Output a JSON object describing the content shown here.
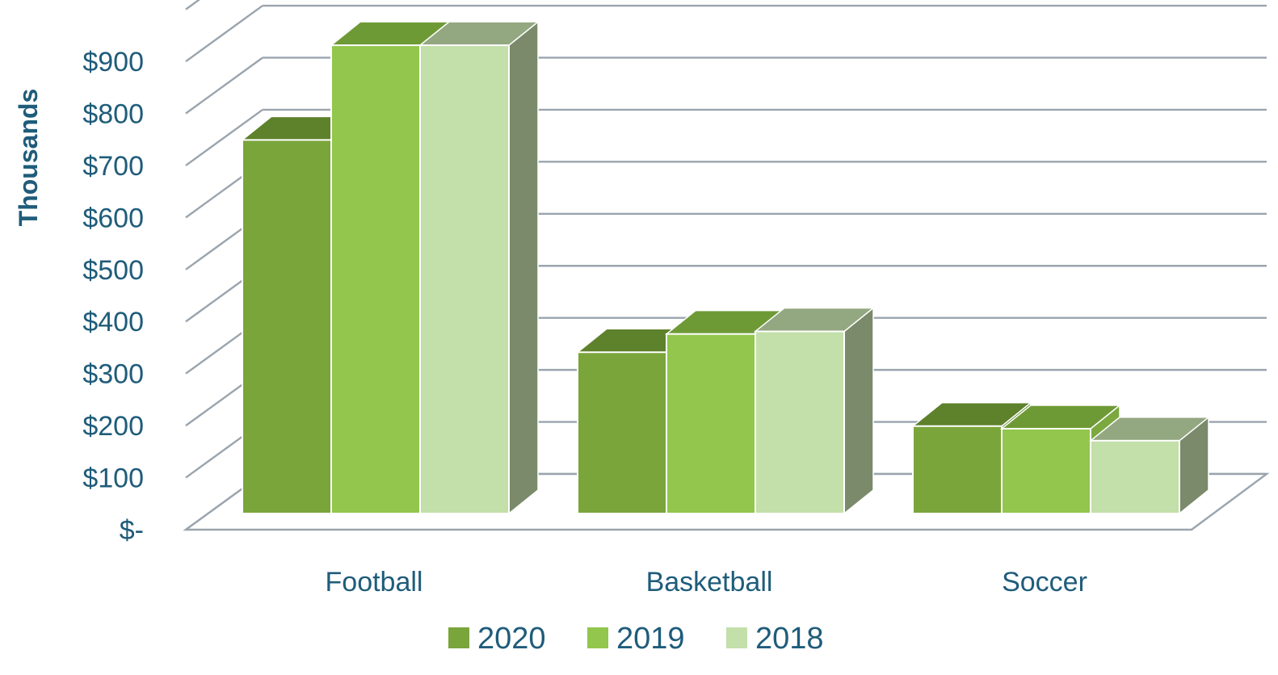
{
  "chart_data": {
    "type": "bar",
    "title": "",
    "xlabel": "",
    "ylabel": "Thousands",
    "categories": [
      "Football",
      "Basketball",
      "Soccer"
    ],
    "series": [
      {
        "name": "2020",
        "values": [
          718,
          310,
          168
        ],
        "color": "#7AA53B",
        "top_color": "#5E812B",
        "side_color": "#678C33"
      },
      {
        "name": "2019",
        "values": [
          900,
          345,
          163
        ],
        "color": "#92C64C",
        "top_color": "#6E9A36",
        "side_color": "#7BA83F"
      },
      {
        "name": "2018",
        "values": [
          900,
          350,
          140
        ],
        "color": "#C3DFAA",
        "top_color": "#93A781",
        "side_color": "#7A8A6A"
      }
    ],
    "ylim": [
      0,
      900
    ],
    "yticks": [
      0,
      100,
      200,
      300,
      400,
      500,
      600,
      700,
      800,
      900
    ],
    "ytick_labels": [
      "$-",
      "$100",
      "$200",
      "$300",
      "$400",
      "$500",
      "$600",
      "$700",
      "$800",
      "$900"
    ],
    "grid": true,
    "style": "3d-clustered-column",
    "legend_position": "bottom",
    "colors": {
      "text": "#1F5C7A",
      "grid": "#9AA4AE"
    }
  }
}
